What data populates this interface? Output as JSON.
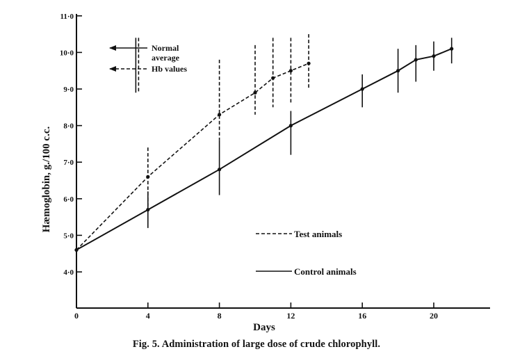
{
  "caption": "Fig. 5.  Administration of large dose of crude chlorophyll.",
  "chart_data": {
    "type": "line",
    "title": "",
    "xlabel": "Days",
    "ylabel": "Hæmoglobin, g./100 c.c.",
    "xlim": [
      0,
      23
    ],
    "ylim": [
      3.0,
      11.0
    ],
    "x_ticks": [
      0,
      4,
      8,
      12,
      16,
      20
    ],
    "x_tick_labels": [
      "0",
      "4",
      "8",
      "12",
      "16",
      "20"
    ],
    "y_ticks": [
      4,
      5,
      6,
      7,
      8,
      9,
      10,
      11
    ],
    "y_tick_labels": [
      "4·0",
      "5·0",
      "6·0",
      "7·0",
      "8·0",
      "9·0",
      "10·0",
      "11·0"
    ],
    "series": [
      {
        "name": "Test animals",
        "style": "dashed",
        "points": [
          {
            "x": 0,
            "y": 4.6
          },
          {
            "x": 4,
            "y": 6.6,
            "low": 5.8,
            "high": 7.4
          },
          {
            "x": 8,
            "y": 8.3,
            "low": 7.6,
            "high": 9.8
          },
          {
            "x": 10,
            "y": 8.9,
            "low": 8.3,
            "high": 10.2
          },
          {
            "x": 11,
            "y": 9.3,
            "low": 8.5,
            "high": 10.4
          },
          {
            "x": 12,
            "y": 9.5,
            "low": 8.6,
            "high": 10.4
          },
          {
            "x": 13,
            "y": 9.7,
            "low": 9.0,
            "high": 10.5
          }
        ]
      },
      {
        "name": "Control animals",
        "style": "solid",
        "points": [
          {
            "x": 0,
            "y": 4.6
          },
          {
            "x": 4,
            "y": 5.7,
            "low": 5.2,
            "high": 6.2
          },
          {
            "x": 8,
            "y": 6.8,
            "low": 6.1,
            "high": 7.6
          },
          {
            "x": 12,
            "y": 8.0,
            "low": 7.2,
            "high": 8.4
          },
          {
            "x": 16,
            "y": 9.0,
            "low": 8.5,
            "high": 9.4
          },
          {
            "x": 18,
            "y": 9.5,
            "low": 8.9,
            "high": 10.1
          },
          {
            "x": 19,
            "y": 9.8,
            "low": 9.2,
            "high": 10.2
          },
          {
            "x": 20,
            "y": 9.9,
            "low": 9.5,
            "high": 10.3
          },
          {
            "x": 21,
            "y": 10.1,
            "low": 9.7,
            "high": 10.4
          }
        ]
      }
    ],
    "normal_range": {
      "x": 3.4,
      "low": 8.9,
      "high": 10.4
    },
    "normal_legend": [
      {
        "style": "solid",
        "lines": [
          "Normal",
          "average"
        ]
      },
      {
        "style": "dashed",
        "lines": [
          "Hb values"
        ]
      }
    ]
  }
}
